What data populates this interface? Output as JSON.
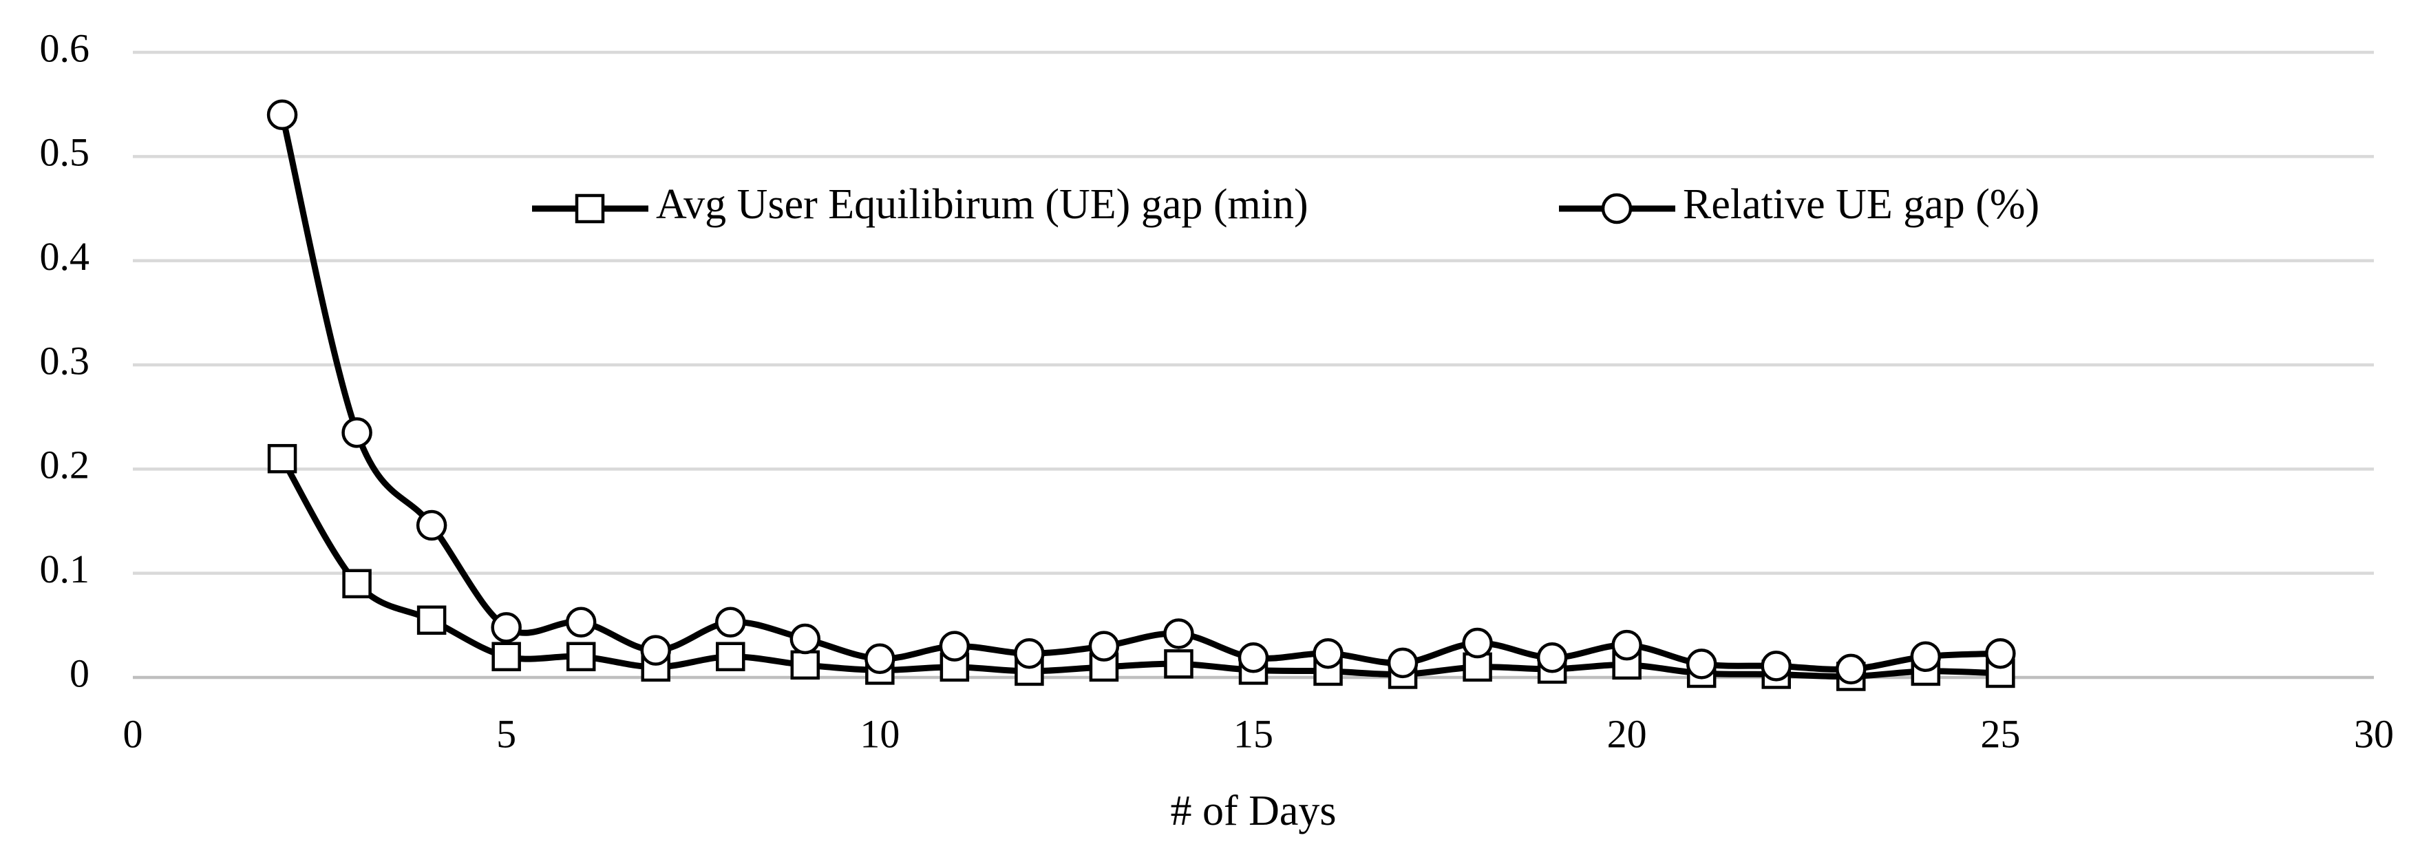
{
  "chart_data": {
    "type": "line",
    "x_label": "# of Days",
    "x": [
      2,
      3,
      4,
      5,
      6,
      7,
      8,
      9,
      10,
      11,
      12,
      13,
      14,
      15,
      16,
      17,
      18,
      19,
      20,
      21,
      22,
      23,
      24,
      25
    ],
    "series": [
      {
        "name": "Avg User Equilibirum (UE) gap (min)",
        "color": "#000000",
        "marker": "square",
        "values": [
          0.21,
          0.09,
          0.055,
          0.02,
          0.02,
          0.01,
          0.02,
          0.012,
          0.007,
          0.01,
          0.006,
          0.01,
          0.013,
          0.007,
          0.006,
          0.003,
          0.01,
          0.008,
          0.012,
          0.004,
          0.003,
          0.001,
          0.006,
          0.004
        ]
      },
      {
        "name": "Relative UE gap (%)",
        "color": "#000000",
        "marker": "circle",
        "values": [
          0.54,
          0.235,
          0.146,
          0.048,
          0.053,
          0.026,
          0.053,
          0.037,
          0.018,
          0.03,
          0.023,
          0.03,
          0.042,
          0.019,
          0.023,
          0.014,
          0.033,
          0.019,
          0.031,
          0.013,
          0.011,
          0.008,
          0.02,
          0.023
        ]
      }
    ],
    "xlim": [
      0,
      30
    ],
    "xticks": [
      0,
      5,
      10,
      15,
      20,
      25,
      30
    ],
    "ylim": [
      0,
      0.6
    ],
    "yticks": [
      0,
      0.1,
      0.2,
      0.3,
      0.4,
      0.5,
      0.6
    ],
    "grid": true,
    "smooth": true
  }
}
